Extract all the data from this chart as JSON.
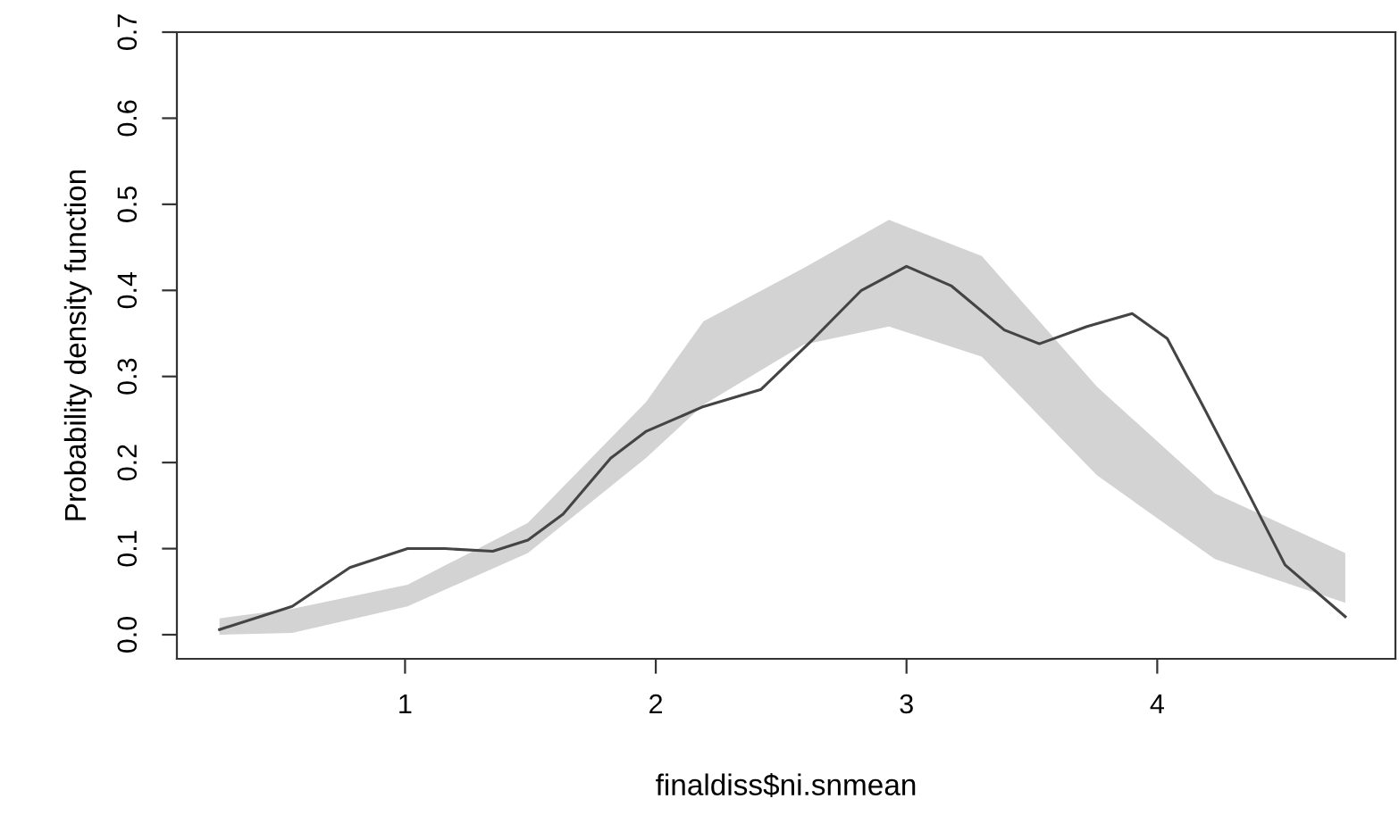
{
  "chart_data": {
    "type": "line",
    "xlabel": "finaldiss$ni.snmean",
    "ylabel": "Probability density function",
    "xlim": [
      0.09,
      4.95
    ],
    "ylim": [
      -0.028,
      0.7
    ],
    "xticks": [
      1,
      2,
      3,
      4
    ],
    "yticks": [
      {
        "value": 0,
        "label": "0.0"
      },
      0.1,
      0.2,
      0.3,
      0.4,
      0.5,
      0.6,
      0.7
    ],
    "grid": false,
    "legend": false,
    "series": [
      {
        "color": "#d3d3d3",
        "x": [
          0.26,
          0.55,
          1.01,
          1.49,
          1.96,
          2.19,
          2.59,
          2.93,
          3.3,
          3.76,
          4.23,
          4.75
        ],
        "values": [
          null,
          null,
          null,
          null,
          null,
          null,
          null,
          null,
          null,
          null,
          null,
          null
        ],
        "lower": [
          0.0,
          0.002,
          0.033,
          0.095,
          0.205,
          0.267,
          0.337,
          0.358,
          0.323,
          0.185,
          0.088,
          0.037
        ],
        "upper": [
          0.019,
          0.03,
          0.058,
          0.13,
          0.27,
          0.364,
          0.426,
          0.482,
          0.44,
          0.288,
          0.164,
          0.095
        ]
      },
      {
        "color": "#444444",
        "x": [
          0.26,
          0.55,
          0.78,
          1.01,
          1.16,
          1.35,
          1.49,
          1.63,
          1.82,
          1.96,
          2.19,
          2.42,
          2.63,
          2.82,
          3.0,
          3.18,
          3.39,
          3.53,
          3.72,
          3.9,
          4.04,
          4.18,
          4.35,
          4.51,
          4.75
        ],
        "values": [
          0.006,
          0.033,
          0.078,
          0.1,
          0.1,
          0.097,
          0.11,
          0.14,
          0.205,
          0.236,
          0.265,
          0.285,
          0.344,
          0.4,
          0.428,
          0.405,
          0.354,
          0.338,
          0.358,
          0.373,
          0.344,
          0.267,
          0.172,
          0.081,
          0.021
        ]
      }
    ]
  }
}
